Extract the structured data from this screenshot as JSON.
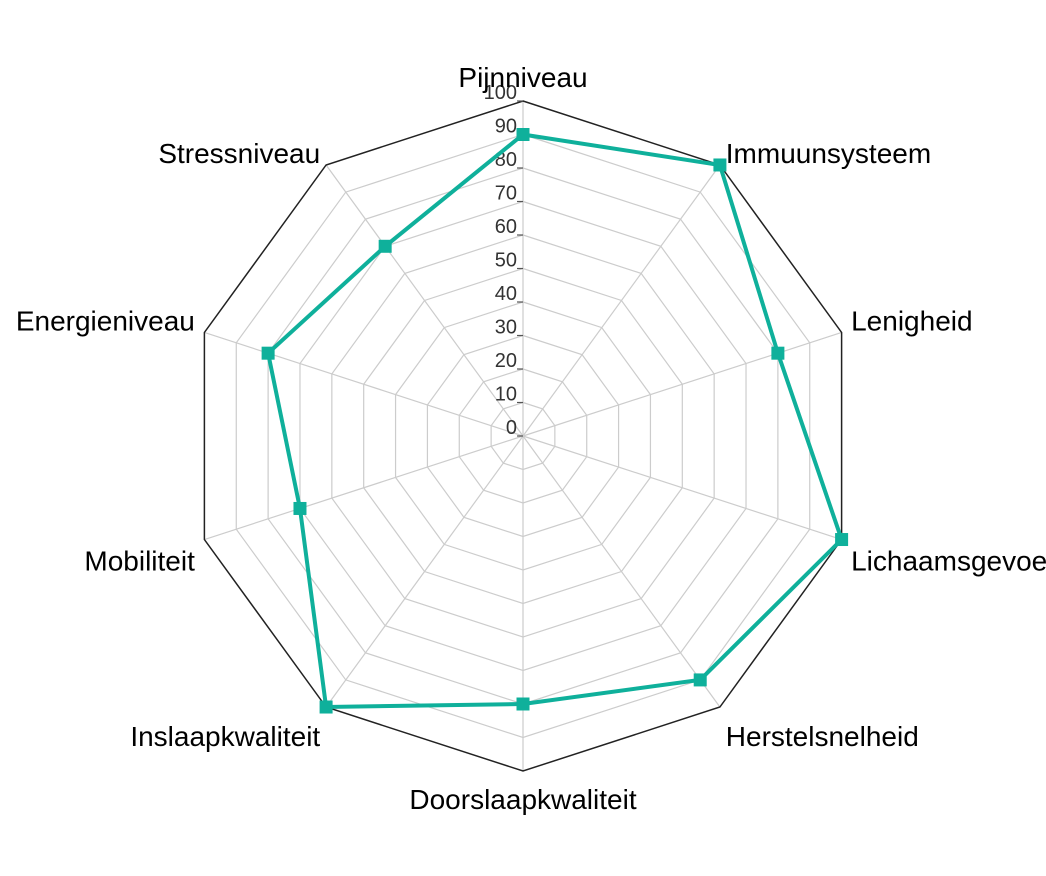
{
  "chart_data": {
    "type": "radar",
    "title": "",
    "axes": [
      "Pijnniveau",
      "Immuunsysteem",
      "Lenigheid",
      "Lichaamsgevoel",
      "Herstelsnelheid",
      "Doorslaapkwaliteit",
      "Inslaapkwaliteit",
      "Mobiliteit",
      "Energieniveau",
      "Stressniveau"
    ],
    "series": [
      {
        "values": [
          90,
          100,
          80,
          100,
          90,
          80,
          100,
          70,
          80,
          70
        ],
        "color": "#0fb09b",
        "marker": "square"
      }
    ],
    "rlim": [
      0,
      100
    ],
    "ticks": [
      0,
      10,
      20,
      30,
      40,
      50,
      60,
      70,
      80,
      90,
      100
    ],
    "grid": true,
    "legend": "none",
    "colors": {
      "series": "#0fb09b",
      "outer_frame": "#222222",
      "grid": "#cccccc",
      "tick_text": "#333333"
    }
  }
}
